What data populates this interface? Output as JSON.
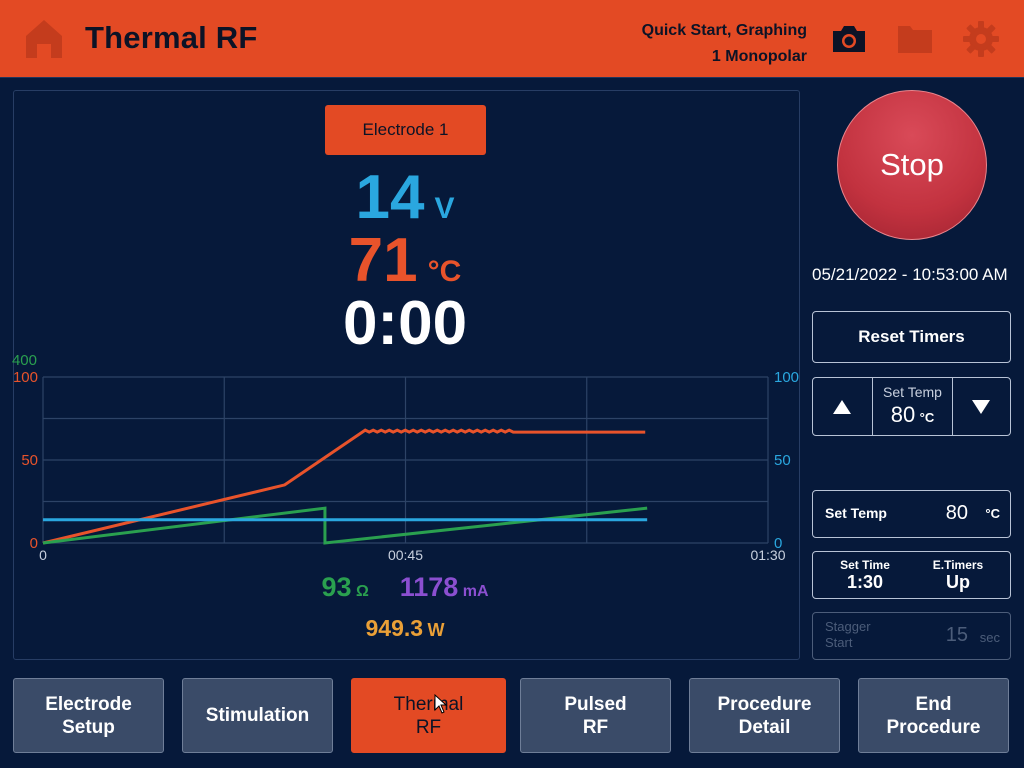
{
  "header": {
    "title": "Thermal RF",
    "mode_line1": "Quick Start, Graphing",
    "mode_line2": "1 Monopolar"
  },
  "electrode_button": "Electrode 1",
  "readouts": {
    "voltage_value": "14",
    "voltage_unit": "V",
    "temp_value": "71",
    "temp_unit": "°C",
    "timer": "0:00",
    "impedance_value": "93",
    "impedance_unit": "Ω",
    "current_value": "1178",
    "current_unit": "mA",
    "power_value": "949.3",
    "power_unit": "W"
  },
  "chart_data": {
    "type": "line",
    "x_tick_labels": [
      "0",
      "00:45",
      "01:30"
    ],
    "xlim_seconds": [
      0,
      90
    ],
    "left_axis_temp_ticks": [
      "0",
      "50",
      "100"
    ],
    "left_axis_temp_range": [
      0,
      100
    ],
    "left_axis_impedance_top": "400",
    "right_axis_ticks": [
      "0",
      "50",
      "100"
    ],
    "right_axis_range": [
      0,
      100
    ],
    "grid": true,
    "series": [
      {
        "color": "#e8532b",
        "x": [
          0,
          30,
          40,
          75
        ],
        "y": [
          0,
          35,
          68,
          68
        ],
        "ripple": true
      },
      {
        "color": "#2aa04f",
        "x": [
          0,
          35,
          35,
          75
        ],
        "y": [
          0,
          21,
          0,
          21
        ]
      },
      {
        "color": "#2aa7df",
        "x": [
          0,
          75
        ],
        "y": [
          14,
          14
        ]
      }
    ]
  },
  "controls": {
    "stop_label": "Stop",
    "datetime": "05/21/2022 - 10:53:00 AM",
    "reset_timers": "Reset Timers",
    "set_temp_label": "Set Temp",
    "set_temp_value": "80",
    "temp_unit": "°C",
    "set_temp_row_label": "Set Temp",
    "set_temp_row_value": "80",
    "set_time_label": "Set Time",
    "set_time_value": "1:30",
    "etimers_label": "E.Timers",
    "etimers_value": "Up",
    "stagger_label_1": "Stagger",
    "stagger_label_2": "Start",
    "stagger_value": "15",
    "stagger_unit": "sec"
  },
  "bottom_nav": [
    {
      "label": "Electrode\nSetup"
    },
    {
      "label": "Stimulation"
    },
    {
      "label": "Thermal\nRF"
    },
    {
      "label": "Pulsed\nRF"
    },
    {
      "label": "Procedure\nDetail"
    },
    {
      "label": "End\nProcedure"
    }
  ],
  "colors": {
    "accent_orange": "#e34a24",
    "background": "#06193a",
    "voltage_blue": "#2aa7df",
    "temp_orange": "#e8532b",
    "impedance_green": "#2aa04f",
    "current_purple": "#8b4fd0",
    "power_orange": "#eaa037"
  }
}
